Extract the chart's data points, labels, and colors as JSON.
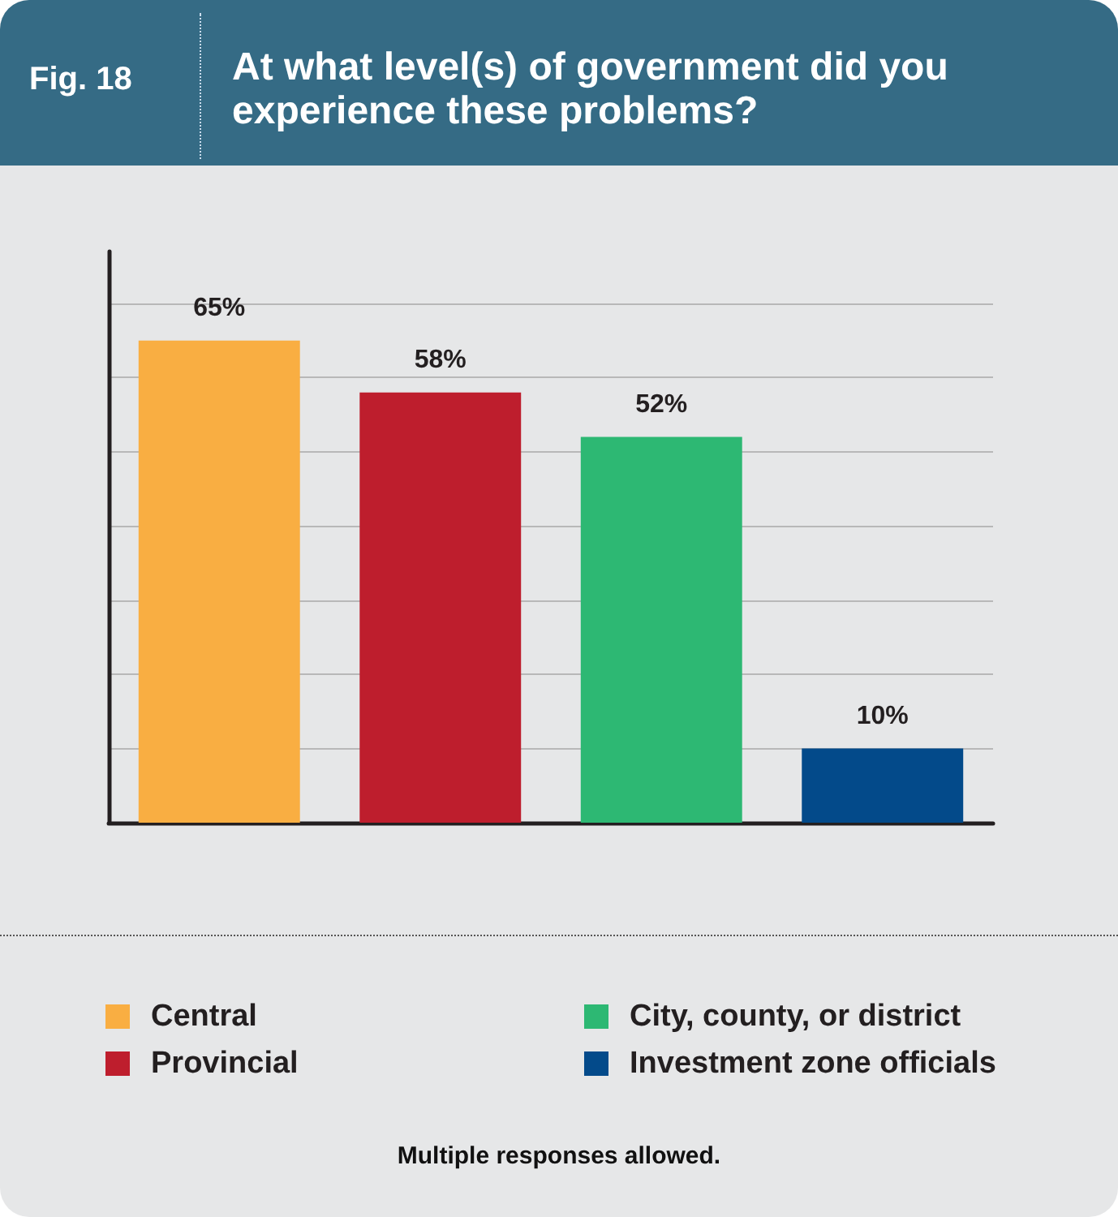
{
  "chart_data": {
    "type": "bar",
    "title": "At what level(s) of government did you experience these problems?",
    "categories": [
      null,
      null,
      null,
      null
    ],
    "stacked": true,
    "series": [
      {
        "name": "Central",
        "color": "#f9ae42",
        "values": [
          65,
          null,
          null,
          null
        ],
        "value_labels": [
          "65%",
          null,
          null,
          null
        ]
      },
      {
        "name": "Provincial",
        "color": "#be1e2d",
        "values": [
          null,
          58,
          null,
          null
        ],
        "value_labels": [
          null,
          "58%",
          null,
          null
        ]
      },
      {
        "name": "City, county, or district",
        "color": "#2db873",
        "values": [
          null,
          null,
          52,
          null
        ],
        "value_labels": [
          null,
          null,
          "52%",
          null
        ]
      },
      {
        "name": "Investment zone officials",
        "color": "#034a8a",
        "values": [
          null,
          null,
          null,
          10
        ],
        "value_labels": [
          null,
          null,
          null,
          "10%"
        ]
      }
    ],
    "ylim": [
      0,
      77
    ],
    "yticks": [
      {
        "value": 10,
        "label": null
      },
      {
        "value": 20,
        "label": null
      },
      {
        "value": 30,
        "label": null
      },
      {
        "value": 40,
        "label": null
      },
      {
        "value": 50,
        "label": null
      },
      {
        "value": 60,
        "label": null
      },
      {
        "value": 70,
        "label": null
      }
    ],
    "grid": "y",
    "legend": "bottom",
    "annotations": [
      "Fig. 18",
      "Multiple responses allowed."
    ]
  }
}
